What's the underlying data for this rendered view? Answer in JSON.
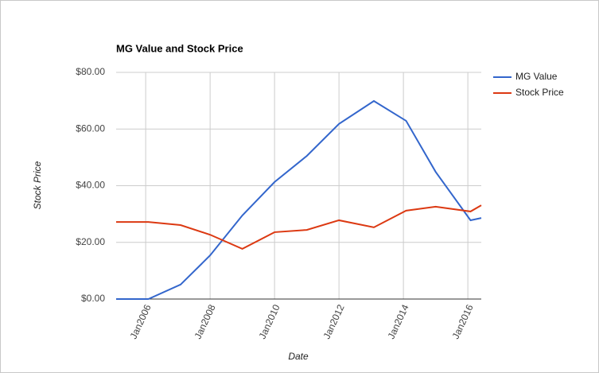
{
  "chart_data": {
    "type": "line",
    "title": "MG Value and Stock Price",
    "x_label": "Date",
    "y_label": "Stock Price",
    "x": [
      "2005-02",
      "2006-02",
      "2007-02",
      "2008-01",
      "2009-01",
      "2010-01",
      "2011-01",
      "2012-01",
      "2013-02",
      "2014-02",
      "2015-01",
      "2016-02",
      "2016-06"
    ],
    "series": [
      {
        "name": "MG Value",
        "color": "#3366cc",
        "values": [
          0,
          0,
          5.1,
          15.4,
          29.5,
          41.3,
          50.5,
          61.8,
          69.9,
          62.9,
          44.9,
          27.8,
          28.6
        ]
      },
      {
        "name": "Stock Price",
        "color": "#dc3912",
        "values": [
          27.2,
          27.2,
          26.1,
          22.7,
          17.7,
          23.6,
          24.4,
          27.8,
          25.3,
          31.2,
          32.6,
          30.9,
          33.1
        ]
      }
    ],
    "xlim": [
      "2005-02",
      "2016-06"
    ],
    "xticks": [
      {
        "value": "2006-01",
        "label": "Jan2006"
      },
      {
        "value": "2008-01",
        "label": "Jan2008"
      },
      {
        "value": "2010-01",
        "label": "Jan2010"
      },
      {
        "value": "2012-01",
        "label": "Jan2012"
      },
      {
        "value": "2014-01",
        "label": "Jan2014"
      },
      {
        "value": "2016-01",
        "label": "Jan2016"
      }
    ],
    "ylim": [
      0,
      80
    ],
    "yticks": [
      {
        "value": 0,
        "label": "$0.00"
      },
      {
        "value": 20,
        "label": "$20.00"
      },
      {
        "value": 40,
        "label": "$40.00"
      },
      {
        "value": 60,
        "label": "$60.00"
      },
      {
        "value": 80,
        "label": "$80.00"
      }
    ],
    "grid": true,
    "legend": "right"
  }
}
